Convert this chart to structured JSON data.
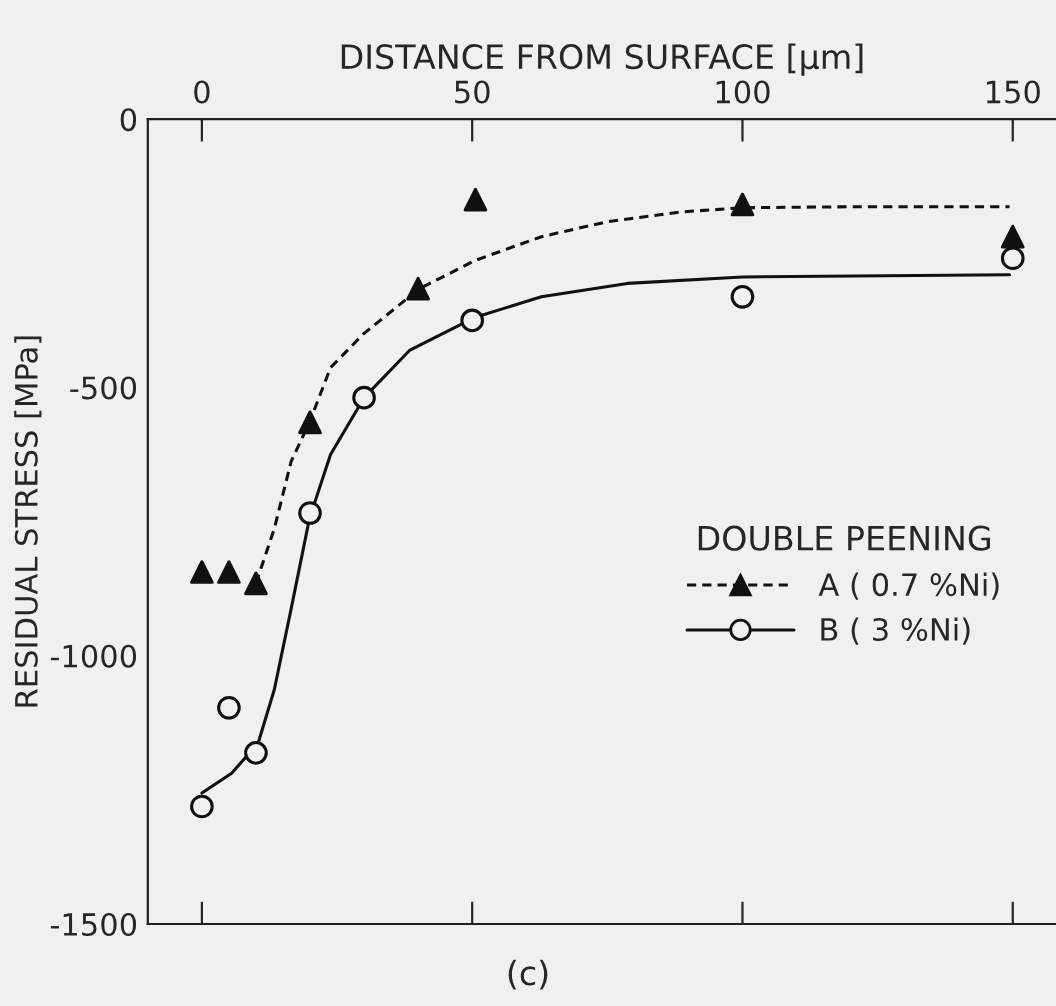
{
  "chart_data": {
    "type": "scatter",
    "xlabel": "DISTANCE FROM SURFACE [µm]",
    "ylabel": "RESIDUAL STRESS [MPa]",
    "legend_title": "DOUBLE PEENING",
    "xlim": [
      -10,
      158
    ],
    "xticks": [
      0,
      50,
      100,
      150
    ],
    "ylim": [
      -1500,
      0
    ],
    "yticks": [
      0,
      -500,
      -1000,
      -1500
    ],
    "grid": false,
    "legend": "right",
    "annotations": [
      "(c)"
    ],
    "series": [
      {
        "name": "A ( 0.7 %Ni)",
        "type": "scatter",
        "marker": "triangle",
        "color": "#111111",
        "x": [
          0,
          5,
          10,
          20,
          40,
          50.6,
          100,
          150
        ],
        "values": [
          -844,
          -844,
          -865,
          -565,
          -316,
          -150,
          -159,
          -219
        ]
      },
      {
        "type": "line",
        "line_style": "dashed",
        "color": "#111111",
        "x": [
          10,
          13.4,
          16.5,
          19.9,
          23.8,
          29.9,
          40.2,
          50.6,
          62.8,
          75,
          88.4,
          100,
          121.3,
          149.4
        ],
        "values": [
          -865,
          -763,
          -638,
          -565,
          -463,
          -400,
          -316,
          -263,
          -219,
          -191,
          -173,
          -165,
          -163,
          -163
        ]
      },
      {
        "name": "B ( 3 %Ni)",
        "type": "scatter",
        "marker": "circle",
        "color": "#111111",
        "x": [
          0,
          5,
          10,
          20,
          30,
          50,
          100,
          150
        ],
        "values": [
          -1281,
          -1097,
          -1181,
          -734,
          -519,
          -375,
          -331,
          -259
        ]
      },
      {
        "type": "line",
        "line_style": "solid",
        "color": "#111111",
        "x": [
          0,
          5.5,
          10.4,
          13.4,
          16.5,
          19.9,
          23.8,
          30,
          38.4,
          50.6,
          62.8,
          78.7,
          100,
          149.4
        ],
        "values": [
          -1256,
          -1219,
          -1163,
          -1063,
          -913,
          -744,
          -625,
          -519,
          -431,
          -369,
          -331,
          -306,
          -294,
          -290
        ]
      }
    ]
  }
}
